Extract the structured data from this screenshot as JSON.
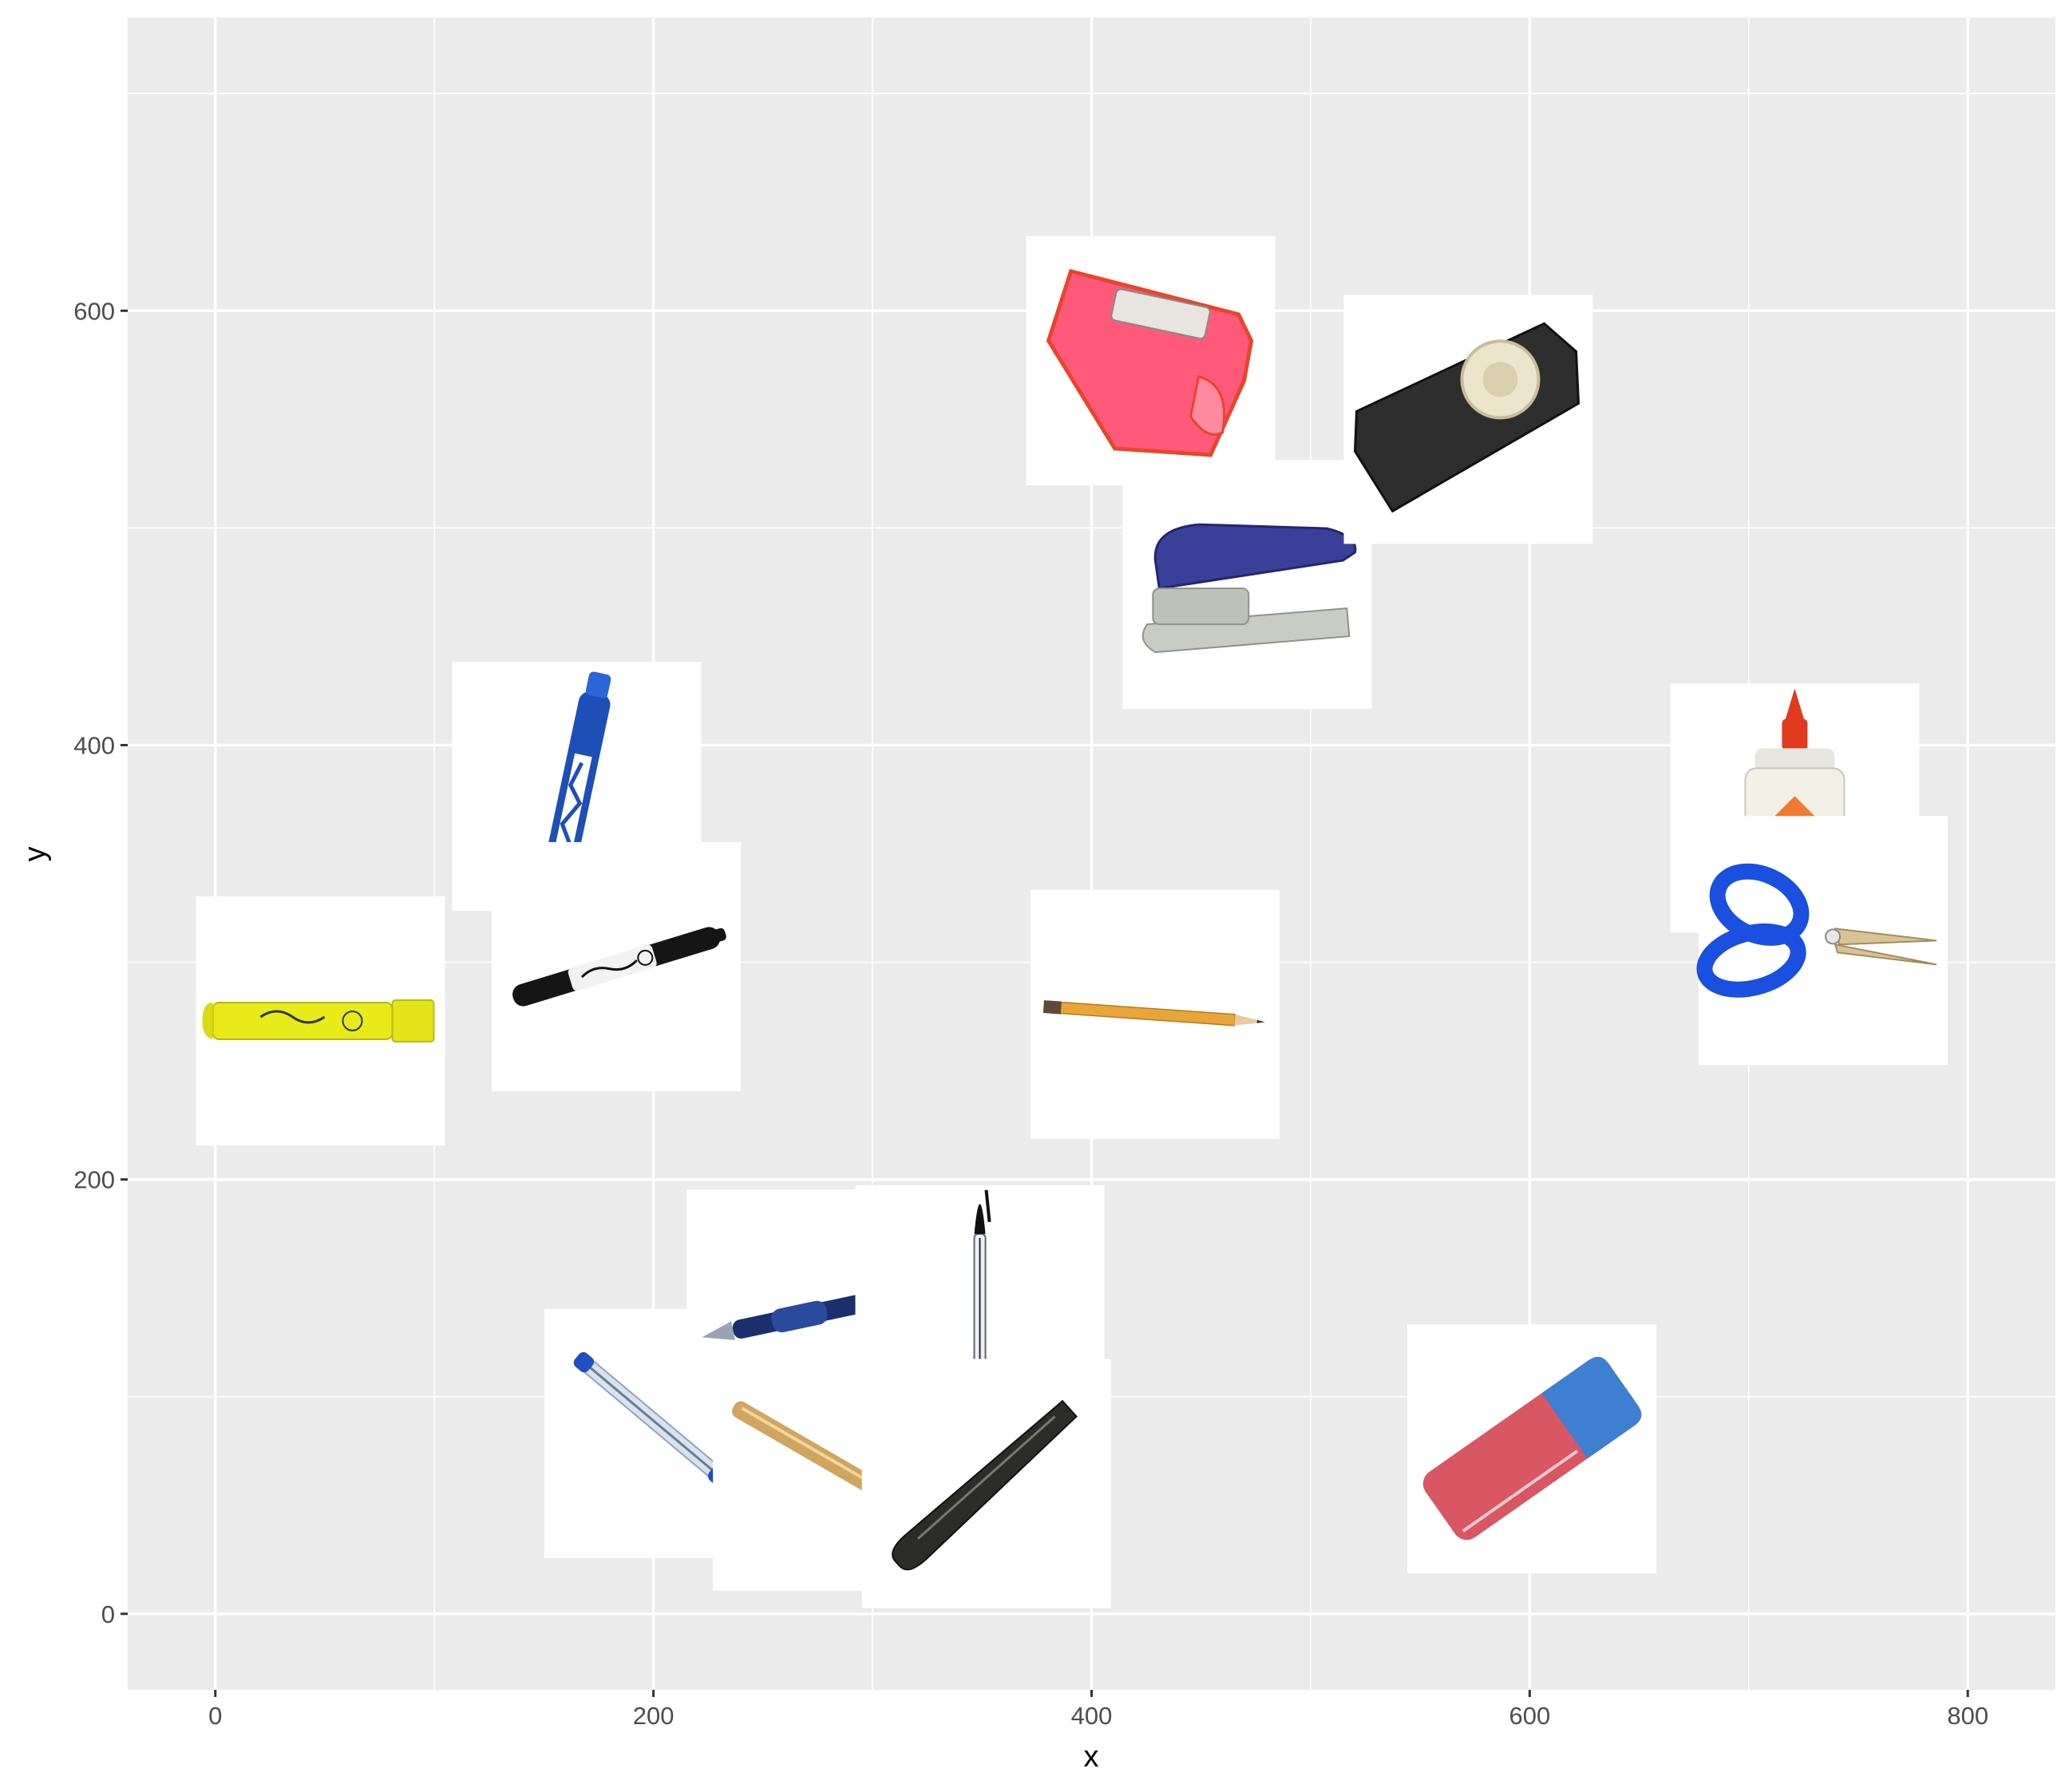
{
  "chart_data": {
    "type": "scatter",
    "title": "",
    "xlabel": "x",
    "ylabel": "y",
    "xlim": [
      -40,
      840
    ],
    "ylim": [
      -35,
      735
    ],
    "x_ticks": [
      0,
      200,
      400,
      600,
      800
    ],
    "x_tick_labels": [
      "0",
      "200",
      "400",
      "600",
      "800"
    ],
    "y_ticks": [
      0,
      200,
      400,
      600
    ],
    "y_tick_labels": [
      "0",
      "200",
      "400",
      "600"
    ],
    "grid": true,
    "legend": "none",
    "point_marker": "image",
    "points": [
      {
        "item": "yellow-highlighter",
        "x": 48,
        "y": 273
      },
      {
        "item": "blue-dry-erase-marker",
        "x": 165,
        "y": 381
      },
      {
        "item": "black-marker",
        "x": 183,
        "y": 298
      },
      {
        "item": "clear-blue-ballpoint-pen",
        "x": 207,
        "y": 83
      },
      {
        "item": "blue-rollerball-pen",
        "x": 272,
        "y": 138
      },
      {
        "item": "gold-pen",
        "x": 284,
        "y": 68
      },
      {
        "item": "black-ballpoint-pen",
        "x": 349,
        "y": 140
      },
      {
        "item": "black-fountain-pen",
        "x": 352,
        "y": 60
      },
      {
        "item": "pencil",
        "x": 429,
        "y": 276
      },
      {
        "item": "pink-pencil-sharpener",
        "x": 427,
        "y": 577
      },
      {
        "item": "blue-stapler",
        "x": 471,
        "y": 474
      },
      {
        "item": "tape-dispenser",
        "x": 572,
        "y": 550
      },
      {
        "item": "eraser",
        "x": 601,
        "y": 76
      },
      {
        "item": "glue-bottle",
        "x": 721,
        "y": 371
      },
      {
        "item": "blue-scissors",
        "x": 734,
        "y": 310
      }
    ]
  }
}
